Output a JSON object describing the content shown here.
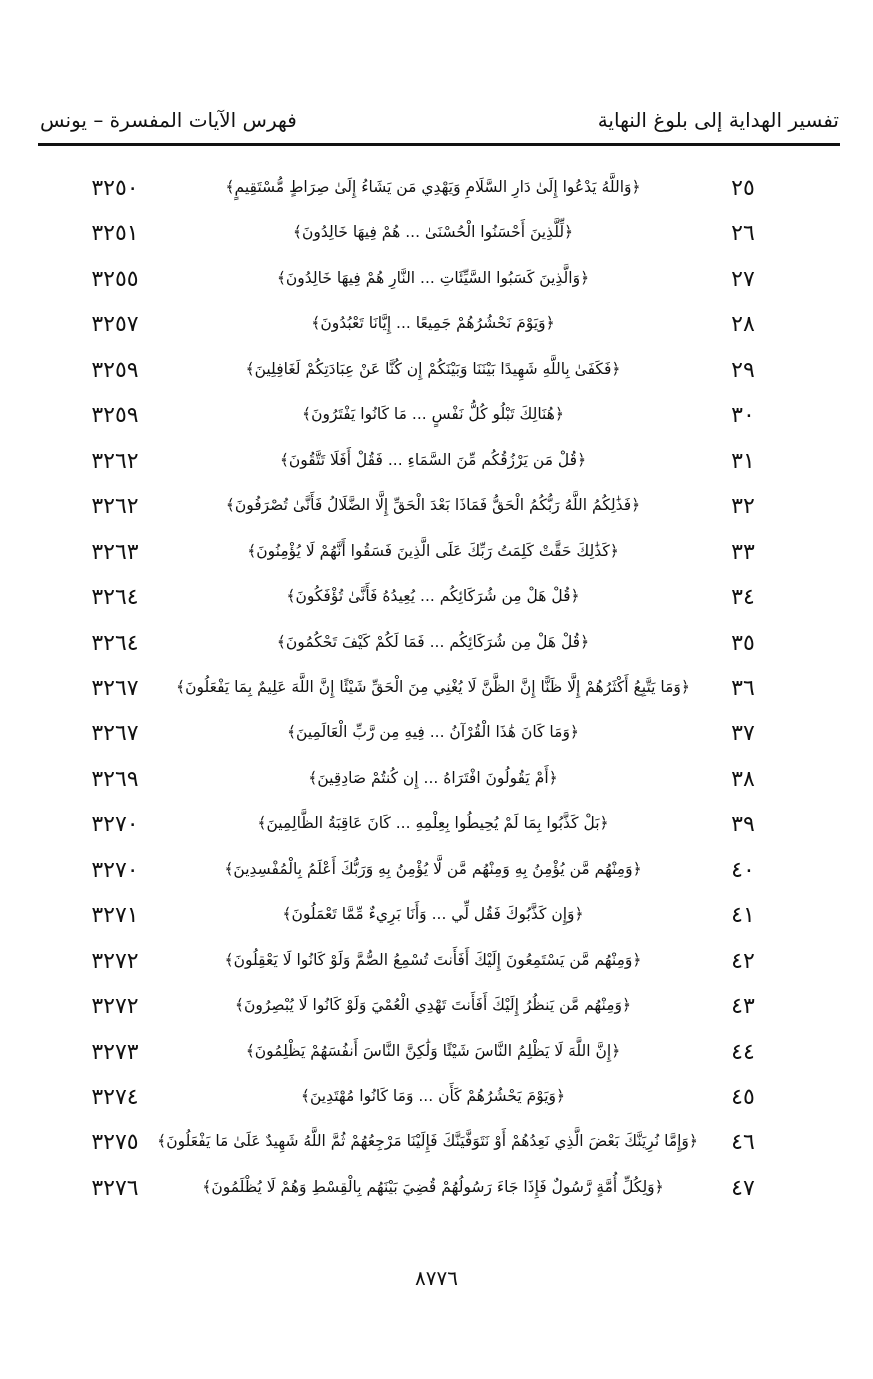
{
  "header": {
    "book_title": "تفسير الهداية إلى بلوغ النهاية",
    "section_title": "فهرس الآيات المفسرة – يونس"
  },
  "rows": [
    {
      "verse_no": "٢٥",
      "verse": "﴿وَاللَّهُ يَدْعُوا إِلَىٰ دَارِ السَّلَامِ وَيَهْدِي مَن يَشَاءُ إِلَىٰ صِرَاطٍ مُّسْتَقِيمٍ﴾",
      "page": "٣٢٥٠"
    },
    {
      "verse_no": "٢٦",
      "verse": "﴿لِّلَّذِينَ أَحْسَنُوا الْحُسْنَىٰ ... هُمْ فِيهَا خَالِدُونَ﴾",
      "page": "٣٢٥١"
    },
    {
      "verse_no": "٢٧",
      "verse": "﴿وَالَّذِينَ كَسَبُوا السَّيِّئَاتِ ... النَّارِ هُمْ فِيهَا خَالِدُونَ﴾",
      "page": "٣٢٥٥"
    },
    {
      "verse_no": "٢٨",
      "verse": "﴿وَيَوْمَ نَحْشُرُهُمْ جَمِيعًا ... إِيَّانَا تَعْبُدُونَ﴾",
      "page": "٣٢٥٧"
    },
    {
      "verse_no": "٢٩",
      "verse": "﴿فَكَفَىٰ بِاللَّهِ شَهِيدًا بَيْنَنَا وَبَيْنَكُمْ إِن كُنَّا عَنْ عِبَادَتِكُمْ لَغَافِلِينَ﴾",
      "page": "٣٢٥٩"
    },
    {
      "verse_no": "٣٠",
      "verse": "﴿هُنَالِكَ تَبْلُو كُلُّ نَفْسٍ ... مَا كَانُوا يَفْتَرُونَ﴾",
      "page": "٣٢٥٩"
    },
    {
      "verse_no": "٣١",
      "verse": "﴿قُلْ مَن يَرْزُقُكُم مِّنَ السَّمَاءِ ... فَقُلْ أَفَلَا تَتَّقُونَ﴾",
      "page": "٣٢٦٢"
    },
    {
      "verse_no": "٣٢",
      "verse": "﴿فَذَٰلِكُمُ اللَّهُ رَبُّكُمُ الْحَقُّ فَمَاذَا بَعْدَ الْحَقِّ إِلَّا الضَّلَالُ فَأَنَّىٰ تُصْرَفُونَ﴾",
      "page": "٣٢٦٢"
    },
    {
      "verse_no": "٣٣",
      "verse": "﴿كَذَٰلِكَ حَقَّتْ كَلِمَتُ رَبِّكَ عَلَى الَّذِينَ فَسَقُوا أَنَّهُمْ لَا يُؤْمِنُونَ﴾",
      "page": "٣٢٦٣"
    },
    {
      "verse_no": "٣٤",
      "verse": "﴿قُلْ هَلْ مِن شُرَكَائِكُم ... يُعِيدُهُ فَأَنَّىٰ تُؤْفَكُونَ﴾",
      "page": "٣٢٦٤"
    },
    {
      "verse_no": "٣٥",
      "verse": "﴿قُلْ هَلْ مِن شُرَكَائِكُم ... فَمَا لَكُمْ كَيْفَ تَحْكُمُونَ﴾",
      "page": "٣٢٦٤"
    },
    {
      "verse_no": "٣٦",
      "verse": "﴿وَمَا يَتَّبِعُ أَكْثَرُهُمْ إِلَّا ظَنًّا إِنَّ الظَّنَّ لَا يُغْنِي مِنَ الْحَقِّ شَيْئًا إِنَّ اللَّهَ عَلِيمٌ بِمَا يَفْعَلُونَ﴾",
      "page": "٣٢٦٧"
    },
    {
      "verse_no": "٣٧",
      "verse": "﴿وَمَا كَانَ هَٰذَا الْقُرْآنُ ... فِيهِ مِن رَّبِّ الْعَالَمِينَ﴾",
      "page": "٣٢٦٧"
    },
    {
      "verse_no": "٣٨",
      "verse": "﴿أَمْ يَقُولُونَ افْتَرَاهُ ... إِن كُنتُمْ صَادِقِينَ﴾",
      "page": "٣٢٦٩"
    },
    {
      "verse_no": "٣٩",
      "verse": "﴿بَلْ كَذَّبُوا بِمَا لَمْ يُحِيطُوا بِعِلْمِهِ ... كَانَ عَاقِبَةُ الظَّالِمِينَ﴾",
      "page": "٣٢٧٠"
    },
    {
      "verse_no": "٤٠",
      "verse": "﴿وَمِنْهُم مَّن يُؤْمِنُ بِهِ وَمِنْهُم مَّن لَّا يُؤْمِنُ بِهِ وَرَبُّكَ أَعْلَمُ بِالْمُفْسِدِينَ﴾",
      "page": "٣٢٧٠"
    },
    {
      "verse_no": "٤١",
      "verse": "﴿وَإِن كَذَّبُوكَ فَقُل لِّي ... وَأَنَا بَرِيءٌ مِّمَّا تَعْمَلُونَ﴾",
      "page": "٣٢٧١"
    },
    {
      "verse_no": "٤٢",
      "verse": "﴿وَمِنْهُم مَّن يَسْتَمِعُونَ إِلَيْكَ أَفَأَنتَ تُسْمِعُ الصُّمَّ وَلَوْ كَانُوا لَا يَعْقِلُونَ﴾",
      "page": "٣٢٧٢"
    },
    {
      "verse_no": "٤٣",
      "verse": "﴿وَمِنْهُم مَّن يَنظُرُ إِلَيْكَ أَفَأَنتَ تَهْدِي الْعُمْيَ وَلَوْ كَانُوا لَا يُبْصِرُونَ﴾",
      "page": "٣٢٧٢"
    },
    {
      "verse_no": "٤٤",
      "verse": "﴿إِنَّ اللَّهَ لَا يَظْلِمُ النَّاسَ شَيْئًا وَلَٰكِنَّ النَّاسَ أَنفُسَهُمْ يَظْلِمُونَ﴾",
      "page": "٣٢٧٣"
    },
    {
      "verse_no": "٤٥",
      "verse": "﴿وَيَوْمَ يَحْشُرُهُمْ كَأَن ... وَمَا كَانُوا مُهْتَدِينَ﴾",
      "page": "٣٢٧٤"
    },
    {
      "verse_no": "٤٦",
      "verse": "﴿وَإِمَّا نُرِيَنَّكَ بَعْضَ الَّذِي نَعِدُهُمْ أَوْ نَتَوَفَّيَنَّكَ فَإِلَيْنَا مَرْجِعُهُمْ ثُمَّ اللَّهُ شَهِيدٌ عَلَىٰ مَا يَفْعَلُونَ﴾",
      "page": "٣٢٧٥"
    },
    {
      "verse_no": "٤٧",
      "verse": "﴿وَلِكُلِّ أُمَّةٍ رَّسُولٌ فَإِذَا جَاءَ رَسُولُهُمْ قُضِيَ بَيْنَهُم بِالْقِسْطِ وَهُمْ لَا يُظْلَمُونَ﴾",
      "page": "٣٢٧٦"
    }
  ],
  "footer": {
    "page_number": "٨٧٧٦"
  }
}
